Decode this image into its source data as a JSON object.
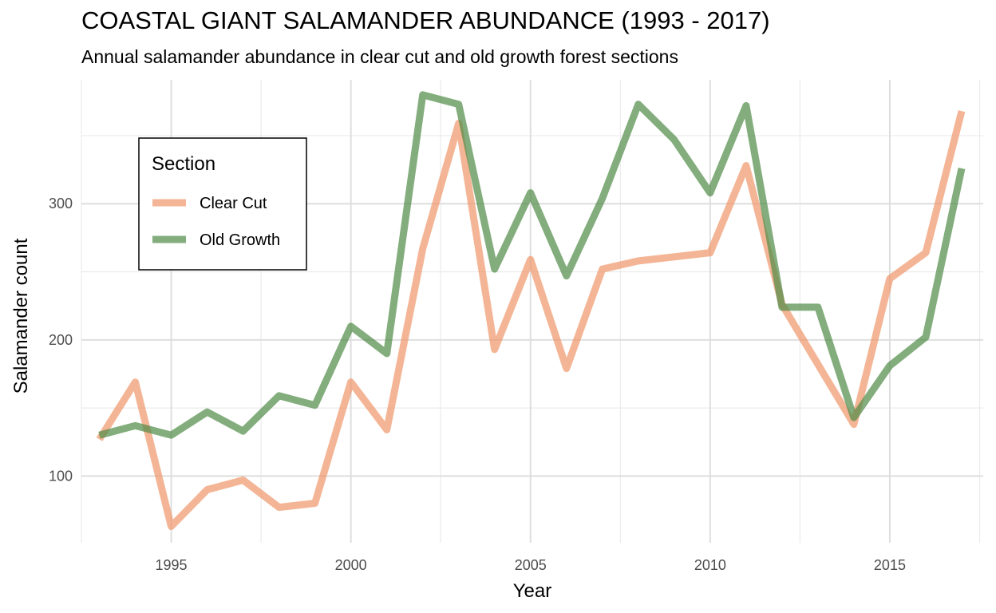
{
  "title": "COASTAL GIANT SALAMANDER ABUNDANCE (1993 - 2017)",
  "subtitle": "Annual salamander abundance in clear cut and old growth forest sections",
  "chart_data": {
    "type": "line",
    "title": "COASTAL GIANT SALAMANDER ABUNDANCE (1993 - 2017)",
    "subtitle": "Annual salamander abundance in clear cut and old growth forest sections",
    "xlabel": "Year",
    "ylabel": "Salamander count",
    "x": [
      1993,
      1994,
      1995,
      1996,
      1997,
      1998,
      1999,
      2000,
      2001,
      2002,
      2003,
      2004,
      2005,
      2006,
      2007,
      2008,
      2009,
      2010,
      2011,
      2012,
      2013,
      2014,
      2015,
      2016,
      2017
    ],
    "xlim": [
      1992.5,
      2017.6
    ],
    "ylim": [
      51,
      391
    ],
    "xticks": [
      1995,
      2000,
      2005,
      2010,
      2015
    ],
    "yticks": [
      100,
      200,
      300
    ],
    "grid": true,
    "legend": {
      "title": "Section",
      "position": "top-left"
    },
    "series": [
      {
        "name": "Clear Cut",
        "color": "#f0956a",
        "values": [
          127,
          169,
          63,
          90,
          97,
          77,
          80,
          169,
          134,
          267,
          359,
          193,
          259,
          179,
          252,
          258,
          261,
          264,
          328,
          226,
          182,
          138,
          245,
          264,
          368
        ]
      },
      {
        "name": "Old Growth",
        "color": "#4e8a46",
        "values": [
          130,
          137,
          130,
          147,
          133,
          159,
          152,
          210,
          190,
          380,
          373,
          252,
          308,
          247,
          304,
          373,
          347,
          308,
          372,
          224,
          224,
          143,
          181,
          202,
          326
        ]
      }
    ]
  }
}
